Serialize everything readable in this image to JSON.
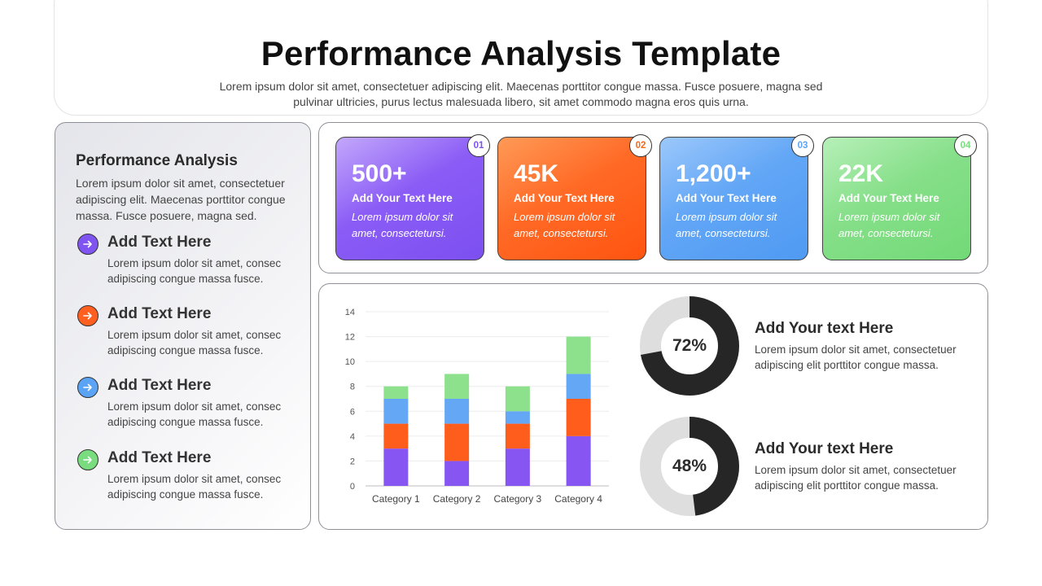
{
  "header": {
    "title": "Performance Analysis Template",
    "subtitle": "Lorem ipsum dolor sit amet, consectetuer adipiscing elit. Maecenas porttitor congue massa. Fusce posuere, magna sed pulvinar ultricies, purus lectus malesuada libero, sit amet commodo magna eros quis urna."
  },
  "sidebar": {
    "title": "Performance Analysis",
    "description": "Lorem ipsum dolor sit amet, consectetuer adipiscing elit. Maecenas porttitor congue massa. Fusce posuere, magna sed.",
    "items": [
      {
        "heading": "Add Text Here",
        "text": "Lorem ipsum dolor sit amet, consec adipiscing congue massa fusce.",
        "color": "#7f54f0",
        "icon": "arrow-right-icon"
      },
      {
        "heading": "Add Text Here",
        "text": "Lorem ipsum dolor sit amet, consec adipiscing congue massa fusce.",
        "color": "#ff5f1f",
        "icon": "arrow-right-icon"
      },
      {
        "heading": "Add Text Here",
        "text": "Lorem ipsum dolor sit amet, consec adipiscing congue massa fusce.",
        "color": "#5aa3f5",
        "icon": "arrow-right-icon"
      },
      {
        "heading": "Add Text Here",
        "text": "Lorem ipsum dolor sit amet, consec adipiscing congue massa fusce.",
        "color": "#79dc7e",
        "icon": "arrow-right-icon"
      }
    ]
  },
  "stats": [
    {
      "badge": "01",
      "value": "500+",
      "label": "Add Your Text Here",
      "desc": "Lorem ipsum dolor sit amet, consectetursi.",
      "color": "#8b5cf6",
      "gradient": [
        "#c3a8fb",
        "#7c4ff0"
      ]
    },
    {
      "badge": "02",
      "value": "45K",
      "label": "Add Your Text Here",
      "desc": "Lorem ipsum dolor sit amet, consectetursi.",
      "color": "#f26a1f",
      "gradient": [
        "#ff9a57",
        "#ff5410"
      ]
    },
    {
      "badge": "03",
      "value": "1,200+",
      "label": "Add Your Text Here",
      "desc": "Lorem ipsum dolor sit amet, consectetursi.",
      "color": "#5aa3f5",
      "gradient": [
        "#9cc8fb",
        "#4f9af3"
      ]
    },
    {
      "badge": "04",
      "value": "22K",
      "label": "Add Your Text Here",
      "desc": "Lorem ipsum dolor sit amet, consectetursi.",
      "color": "#79dc7e",
      "gradient": [
        "#b7f0b9",
        "#72d977"
      ]
    }
  ],
  "chart_data": [
    {
      "type": "bar",
      "stacked": true,
      "categories": [
        "Category 1",
        "Category 2",
        "Category 3",
        "Category 4"
      ],
      "series": [
        {
          "values": [
            3,
            2,
            3,
            4
          ],
          "color": "#8655f2"
        },
        {
          "values": [
            2,
            3,
            2,
            3
          ],
          "color": "#ff5d1c"
        },
        {
          "values": [
            2,
            2,
            1,
            2
          ],
          "color": "#63a7f5"
        },
        {
          "values": [
            1,
            2,
            2,
            3
          ],
          "color": "#8de08c"
        }
      ],
      "ylim": [
        0,
        14
      ],
      "yticks": [
        0,
        2,
        4,
        6,
        8,
        10,
        12,
        14
      ],
      "grid": true,
      "legend": "none"
    },
    {
      "type": "pie",
      "donut": true,
      "value": 72,
      "label": "72%",
      "colors": [
        "#262626",
        "#dedede"
      ]
    },
    {
      "type": "pie",
      "donut": true,
      "value": 48,
      "label": "48%",
      "colors": [
        "#262626",
        "#dedede"
      ]
    }
  ],
  "donut_texts": [
    {
      "heading": "Add Your text Here",
      "text": "Lorem ipsum dolor sit amet, consectetuer adipiscing elit porttitor congue massa."
    },
    {
      "heading": "Add Your text Here",
      "text": "Lorem ipsum dolor sit amet, consectetuer adipiscing elit porttitor congue massa."
    }
  ]
}
